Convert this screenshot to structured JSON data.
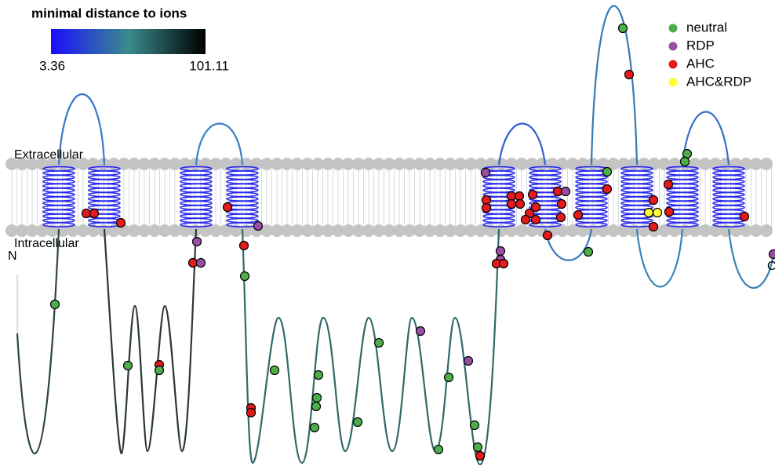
{
  "colorbar": {
    "title": "minimal distance to ions",
    "min_label": "3.36",
    "max_label": "101.11",
    "colors": [
      "#1a0cff",
      "#3a8c8c",
      "#000000"
    ]
  },
  "membrane": {
    "extracellular": "Extracellular",
    "intracellular": "Intracellular"
  },
  "termini": {
    "n": "N",
    "c": "C"
  },
  "legend": [
    {
      "name": "neutral",
      "color": "#4daf4a"
    },
    {
      "name": "RDP",
      "color": "#984ea3"
    },
    {
      "name": "AHC",
      "color": "#e41a1c"
    },
    {
      "name": "AHC&RDP",
      "color": "#ffff33"
    }
  ]
}
